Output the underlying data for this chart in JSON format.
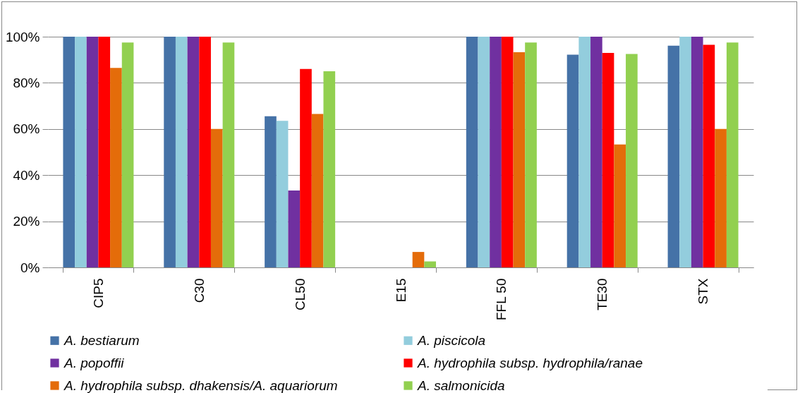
{
  "chart_data": {
    "type": "bar",
    "categories": [
      "CIP5",
      "C30",
      "CL50",
      "E15",
      "FFL 50",
      "TE30",
      "STX"
    ],
    "series": [
      {
        "name": "A. bestiarum",
        "color": "#4572a7",
        "values": [
          100,
          100,
          65.5,
          0,
          100,
          92.2,
          96.1
        ]
      },
      {
        "name": "A. piscicola",
        "color": "#93cddd",
        "values": [
          100,
          100,
          63.5,
          0,
          100,
          100,
          100
        ]
      },
      {
        "name": "A. popoffii",
        "color": "#7030a0",
        "values": [
          100,
          100,
          33.3,
          0,
          100,
          100,
          100
        ]
      },
      {
        "name": "A. hydrophila subsp. hydrophila/ranae",
        "color": "#ff0000",
        "values": [
          100,
          100,
          86,
          0,
          100,
          93,
          96.5
        ]
      },
      {
        "name": "A. hydrophila subsp. dhakensis/A. aquariorum",
        "color": "#e46c0a",
        "values": [
          86.5,
          60,
          66.5,
          6.7,
          93.3,
          53.3,
          60
        ]
      },
      {
        "name": "A. salmonicida",
        "color": "#92d050",
        "values": [
          97.5,
          97.5,
          85,
          2.6,
          97.5,
          92.5,
          97.5
        ]
      }
    ],
    "ylim": [
      0,
      100
    ],
    "yticks": [
      {
        "value": 0,
        "label": "0%"
      },
      {
        "value": 20,
        "label": "20%"
      },
      {
        "value": 40,
        "label": "40%"
      },
      {
        "value": 60,
        "label": "60%"
      },
      {
        "value": 80,
        "label": "80%"
      },
      {
        "value": 100,
        "label": "100%"
      }
    ],
    "grid": "y",
    "legend": "bottom"
  }
}
